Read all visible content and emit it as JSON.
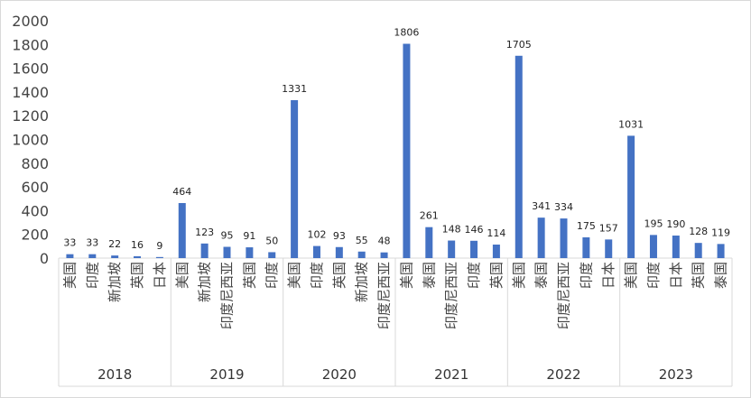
{
  "chart_data": {
    "type": "bar",
    "title": "",
    "xlabel": "",
    "ylabel": "",
    "ylim": [
      0,
      2000
    ],
    "yticks": [
      0,
      200,
      400,
      600,
      800,
      1000,
      1200,
      1400,
      1600,
      1800,
      2000
    ],
    "grid": false,
    "legend": "none",
    "bar_color": "#4472C4",
    "groups": [
      {
        "year": "2018",
        "categories": [
          "美国",
          "印度",
          "新加坡",
          "英国",
          "日本"
        ],
        "values": [
          33,
          33,
          22,
          16,
          9
        ]
      },
      {
        "year": "2019",
        "categories": [
          "美国",
          "新加坡",
          "印度尼西亚",
          "英国",
          "印度"
        ],
        "values": [
          464,
          123,
          95,
          91,
          50
        ]
      },
      {
        "year": "2020",
        "categories": [
          "美国",
          "印度",
          "英国",
          "新加坡",
          "印度尼西亚"
        ],
        "values": [
          1331,
          102,
          93,
          55,
          48
        ]
      },
      {
        "year": "2021",
        "categories": [
          "美国",
          "泰国",
          "印度尼西亚",
          "印度",
          "英国"
        ],
        "values": [
          1806,
          261,
          148,
          146,
          114
        ]
      },
      {
        "year": "2022",
        "categories": [
          "美国",
          "泰国",
          "印度尼西亚",
          "印度",
          "日本"
        ],
        "values": [
          1705,
          341,
          334,
          175,
          157
        ]
      },
      {
        "year": "2023",
        "categories": [
          "美国",
          "印度",
          "日本",
          "英国",
          "泰国"
        ],
        "values": [
          1031,
          195,
          190,
          128,
          119
        ]
      }
    ]
  }
}
